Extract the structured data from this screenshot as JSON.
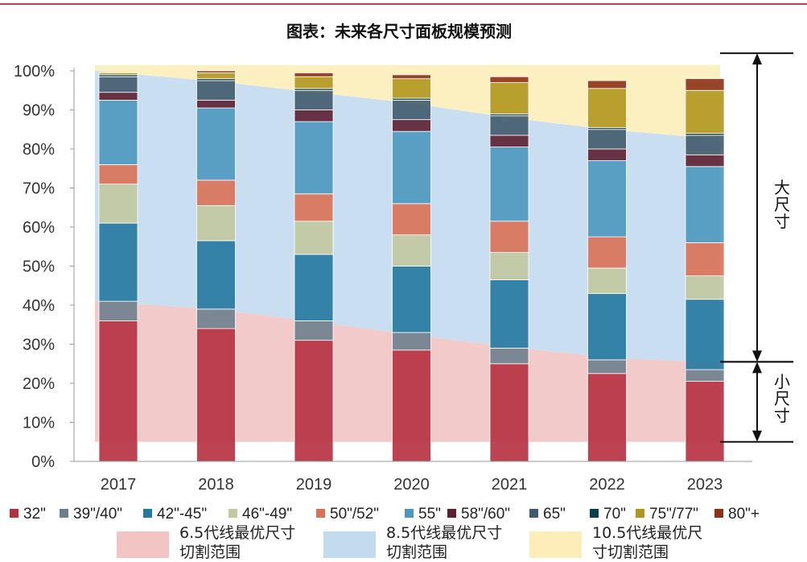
{
  "chart_data": {
    "type": "bar",
    "stacked": true,
    "title": "图表：未来各尺寸面板规模预测",
    "categories": [
      "2017",
      "2018",
      "2019",
      "2020",
      "2021",
      "2022",
      "2023"
    ],
    "ylim": [
      0,
      100
    ],
    "yticks": [
      "0%",
      "10%",
      "20%",
      "30%",
      "40%",
      "50%",
      "60%",
      "70%",
      "80%",
      "90%",
      "100%"
    ],
    "series": [
      {
        "name": "32\"",
        "color": "#b5303f",
        "values": [
          36,
          34,
          31,
          28.5,
          25,
          22.5,
          20.5
        ]
      },
      {
        "name": "39\"/40\"",
        "color": "#6e7f8c",
        "values": [
          5,
          5,
          5,
          4.5,
          4,
          3.5,
          3
        ]
      },
      {
        "name": "42\"-45\"",
        "color": "#23789e",
        "values": [
          20,
          17.5,
          17,
          17,
          17.5,
          17,
          18
        ]
      },
      {
        "name": "46\"-49\"",
        "color": "#c2c8a0",
        "values": [
          10,
          9,
          8.5,
          8,
          7,
          6.5,
          6
        ]
      },
      {
        "name": "50\"/52\"",
        "color": "#da7155",
        "values": [
          5,
          6.5,
          7,
          8,
          8,
          8,
          8.5
        ]
      },
      {
        "name": "55\"",
        "color": "#4d98bf",
        "values": [
          16.5,
          18.5,
          18.5,
          18.5,
          19,
          19.5,
          19.5
        ]
      },
      {
        "name": "58\"/60\"",
        "color": "#5c1f30",
        "values": [
          2,
          2,
          3,
          3,
          3,
          3,
          3
        ]
      },
      {
        "name": "65\"",
        "color": "#415b6c",
        "values": [
          4,
          5,
          5,
          5,
          5,
          5,
          5
        ]
      },
      {
        "name": "70\"",
        "color": "#0e3c52",
        "values": [
          0.5,
          0.5,
          0.5,
          0.5,
          0.5,
          0.5,
          0.5
        ]
      },
      {
        "name": "75\"/77\"",
        "color": "#b0961e",
        "values": [
          0.5,
          1.5,
          3,
          5,
          8,
          10,
          11
        ]
      },
      {
        "name": "80\"+",
        "color": "#8c3218",
        "values": [
          0,
          0.5,
          1,
          1,
          1.5,
          2,
          3
        ]
      }
    ],
    "bands": [
      {
        "name": "6.5代线最优尺寸切割范围",
        "label_lines": [
          "6.5代线最优尺寸",
          "切割范围"
        ],
        "color": "#f2c4c4",
        "lower": [
          5,
          5,
          5,
          5,
          5,
          5,
          5
        ],
        "upper": [
          41,
          38.9,
          35.8,
          32.4,
          29.3,
          26.6,
          25.2
        ]
      },
      {
        "name": "8.5代线最优尺寸切割范围",
        "label_lines": [
          "8.5代线最优尺寸",
          "切割范围"
        ],
        "color": "#c3dbef",
        "lower": [
          41,
          38.9,
          35.8,
          32.4,
          29.3,
          26.6,
          25.2
        ],
        "upper": [
          100,
          97.3,
          94.5,
          91.7,
          88,
          85,
          82.5
        ]
      },
      {
        "name": "10.5代线最优尺寸切割范围",
        "label_lines": [
          "10.5代线最优尺",
          "寸切割范围"
        ],
        "color": "#fdeeb9",
        "lower": [
          100,
          97.3,
          94.5,
          91.7,
          88,
          85,
          82.5
        ],
        "upper": [
          101.5,
          101.5,
          101.5,
          101.5,
          101.5,
          101.5,
          101.5
        ]
      }
    ],
    "annotations": [
      {
        "text_lines": [
          "大",
          "尺",
          "寸"
        ],
        "from": 25.5,
        "to": 104.5
      },
      {
        "text_lines": [
          "小",
          "尺",
          "寸"
        ],
        "from": 5,
        "to": 25.5
      }
    ]
  }
}
